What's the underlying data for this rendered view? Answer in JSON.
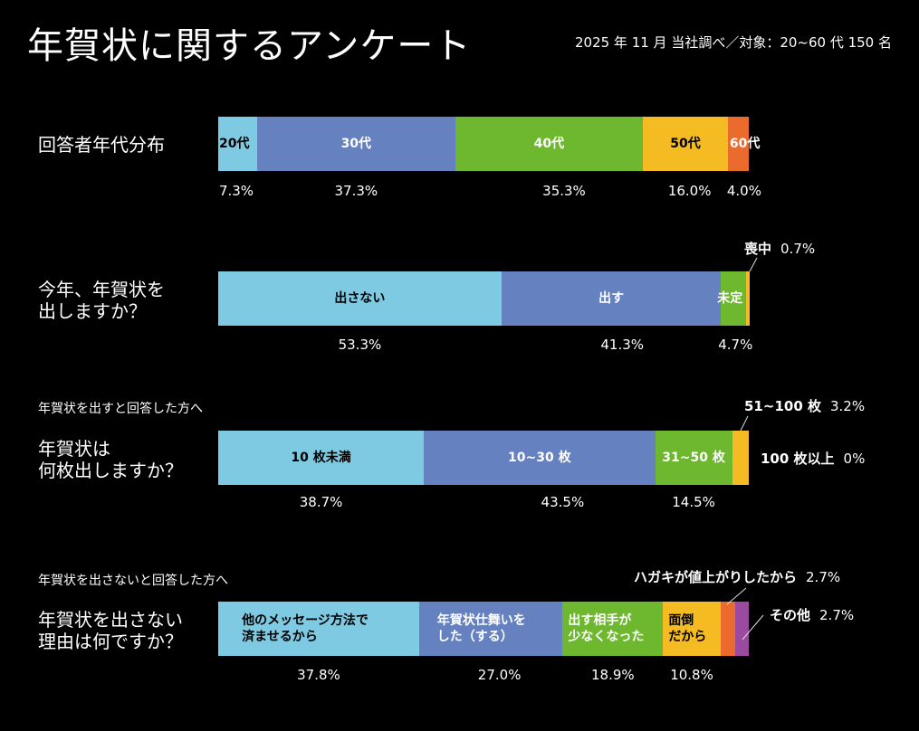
{
  "header": {
    "title": "年賀状に関するアンケート",
    "subtitle": "2025 年 11 月 当社調べ／対象：20~60 代 150 名"
  },
  "colors": {
    "light_blue": "#7ecae3",
    "blue": "#6581c0",
    "green": "#6db82e",
    "yellow": "#f4bb22",
    "orange": "#ea6b2c",
    "purple": "#9a4a9f"
  },
  "chart_data": [
    {
      "type": "bar",
      "orientation": "horizontal-stacked-100",
      "title": "回答者年代分布",
      "note": "",
      "categories": [
        "20代",
        "30代",
        "40代",
        "50代",
        "60代"
      ],
      "values": [
        7.3,
        37.3,
        35.3,
        16.0,
        4.0
      ],
      "value_labels": [
        "7.3%",
        "37.3%",
        "35.3%",
        "16.0%",
        "4.0%"
      ],
      "colors": [
        "#7ecae3",
        "#6581c0",
        "#6db82e",
        "#f4bb22",
        "#ea6b2c"
      ],
      "label_colors": [
        "#000000",
        "#ffffff",
        "#ffffff",
        "#000000",
        "#ffffff"
      ]
    },
    {
      "type": "bar",
      "orientation": "horizontal-stacked-100",
      "title": "今年、年賀状を\n出しますか？",
      "note": "",
      "categories": [
        "出さない",
        "出す",
        "未定",
        "喪中"
      ],
      "values": [
        53.3,
        41.3,
        4.7,
        0.7
      ],
      "value_labels": [
        "53.3%",
        "41.3%",
        "4.7%",
        "0.7%"
      ],
      "colors": [
        "#7ecae3",
        "#6581c0",
        "#6db82e",
        "#f4bb22"
      ],
      "label_colors": [
        "#000000",
        "#ffffff",
        "#ffffff",
        "#ffffff"
      ],
      "callouts": [
        {
          "category": "喪中",
          "value_label": "0.7%"
        }
      ]
    },
    {
      "type": "bar",
      "orientation": "horizontal-stacked-100",
      "title": "年賀状は\n何枚出しますか？",
      "note": "年賀状を出すと回答した方へ",
      "categories": [
        "10 枚未満",
        "10~30 枚",
        "31~50 枚",
        "51~100 枚",
        "100 枚以上"
      ],
      "values": [
        38.7,
        43.5,
        14.5,
        3.2,
        0
      ],
      "value_labels": [
        "38.7%",
        "43.5%",
        "14.5%",
        "3.2%",
        "0%"
      ],
      "colors": [
        "#7ecae3",
        "#6581c0",
        "#6db82e",
        "#f4bb22",
        "#ea6b2c"
      ],
      "label_colors": [
        "#000000",
        "#ffffff",
        "#ffffff",
        "#ffffff",
        "#ffffff"
      ],
      "callouts": [
        {
          "category": "51~100 枚",
          "value_label": "3.2%"
        },
        {
          "category": "100 枚以上",
          "value_label": "0%"
        }
      ]
    },
    {
      "type": "bar",
      "orientation": "horizontal-stacked-100",
      "title": "年賀状を出さない\n理由は何ですか？",
      "note": "年賀状を出さないと回答した方へ",
      "categories": [
        "他のメッセージ方法で\n済ませるから",
        "年賀状仕舞いを\nした（する）",
        "出す相手が\n少なくなった",
        "面倒\nだから",
        "ハガキが値上がりしたから",
        "その他"
      ],
      "values": [
        37.8,
        27.0,
        18.9,
        10.8,
        2.7,
        2.7
      ],
      "value_labels": [
        "37.8%",
        "27.0%",
        "18.9%",
        "10.8%",
        "2.7%",
        "2.7%"
      ],
      "colors": [
        "#7ecae3",
        "#6581c0",
        "#6db82e",
        "#f4bb22",
        "#ea6b2c",
        "#9a4a9f"
      ],
      "label_colors": [
        "#000000",
        "#ffffff",
        "#ffffff",
        "#000000",
        "#ffffff",
        "#ffffff"
      ],
      "callouts": [
        {
          "category": "ハガキが値上がりしたから",
          "value_label": "2.7%"
        },
        {
          "category": "その他",
          "value_label": "2.7%"
        }
      ]
    }
  ]
}
